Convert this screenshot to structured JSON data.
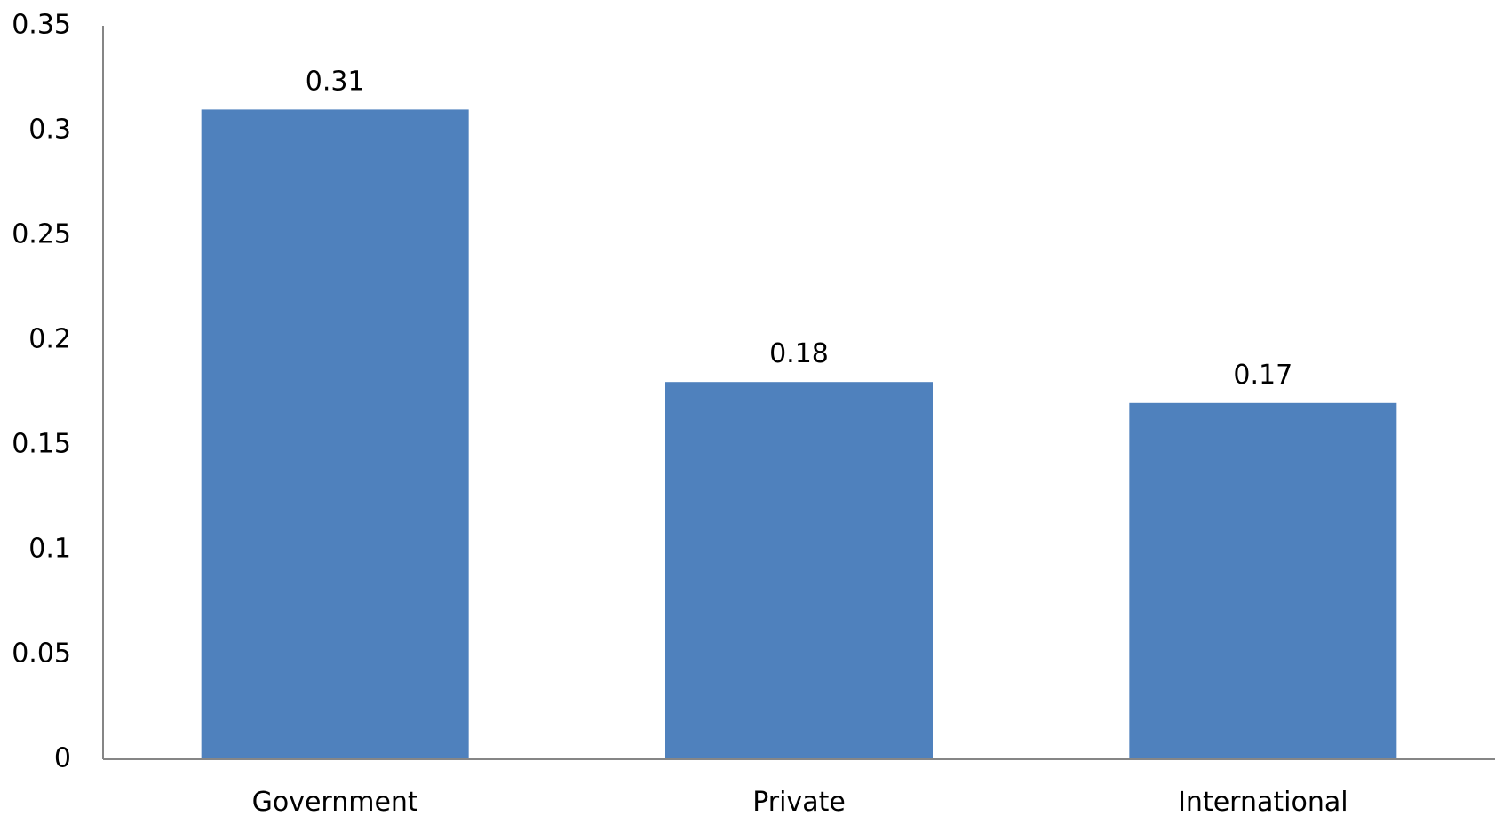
{
  "chart_data": {
    "type": "bar",
    "title": "",
    "xlabel": "",
    "ylabel": "",
    "categories": [
      "Government",
      "Private",
      "International"
    ],
    "values": [
      0.31,
      0.18,
      0.17
    ],
    "data_labels": [
      "0.31",
      "0.18",
      "0.17"
    ],
    "ylim": [
      0,
      0.35
    ],
    "y_ticks": [
      0,
      0.05,
      0.1,
      0.15,
      0.2,
      0.25,
      0.3,
      0.35
    ],
    "y_tick_labels": [
      "0",
      "0.05",
      "0.1",
      "0.15",
      "0.2",
      "0.25",
      "0.3",
      "0.35"
    ],
    "grid": false,
    "legend": "none",
    "bar_color": "#4f81bd",
    "axis_color": "#868686"
  }
}
